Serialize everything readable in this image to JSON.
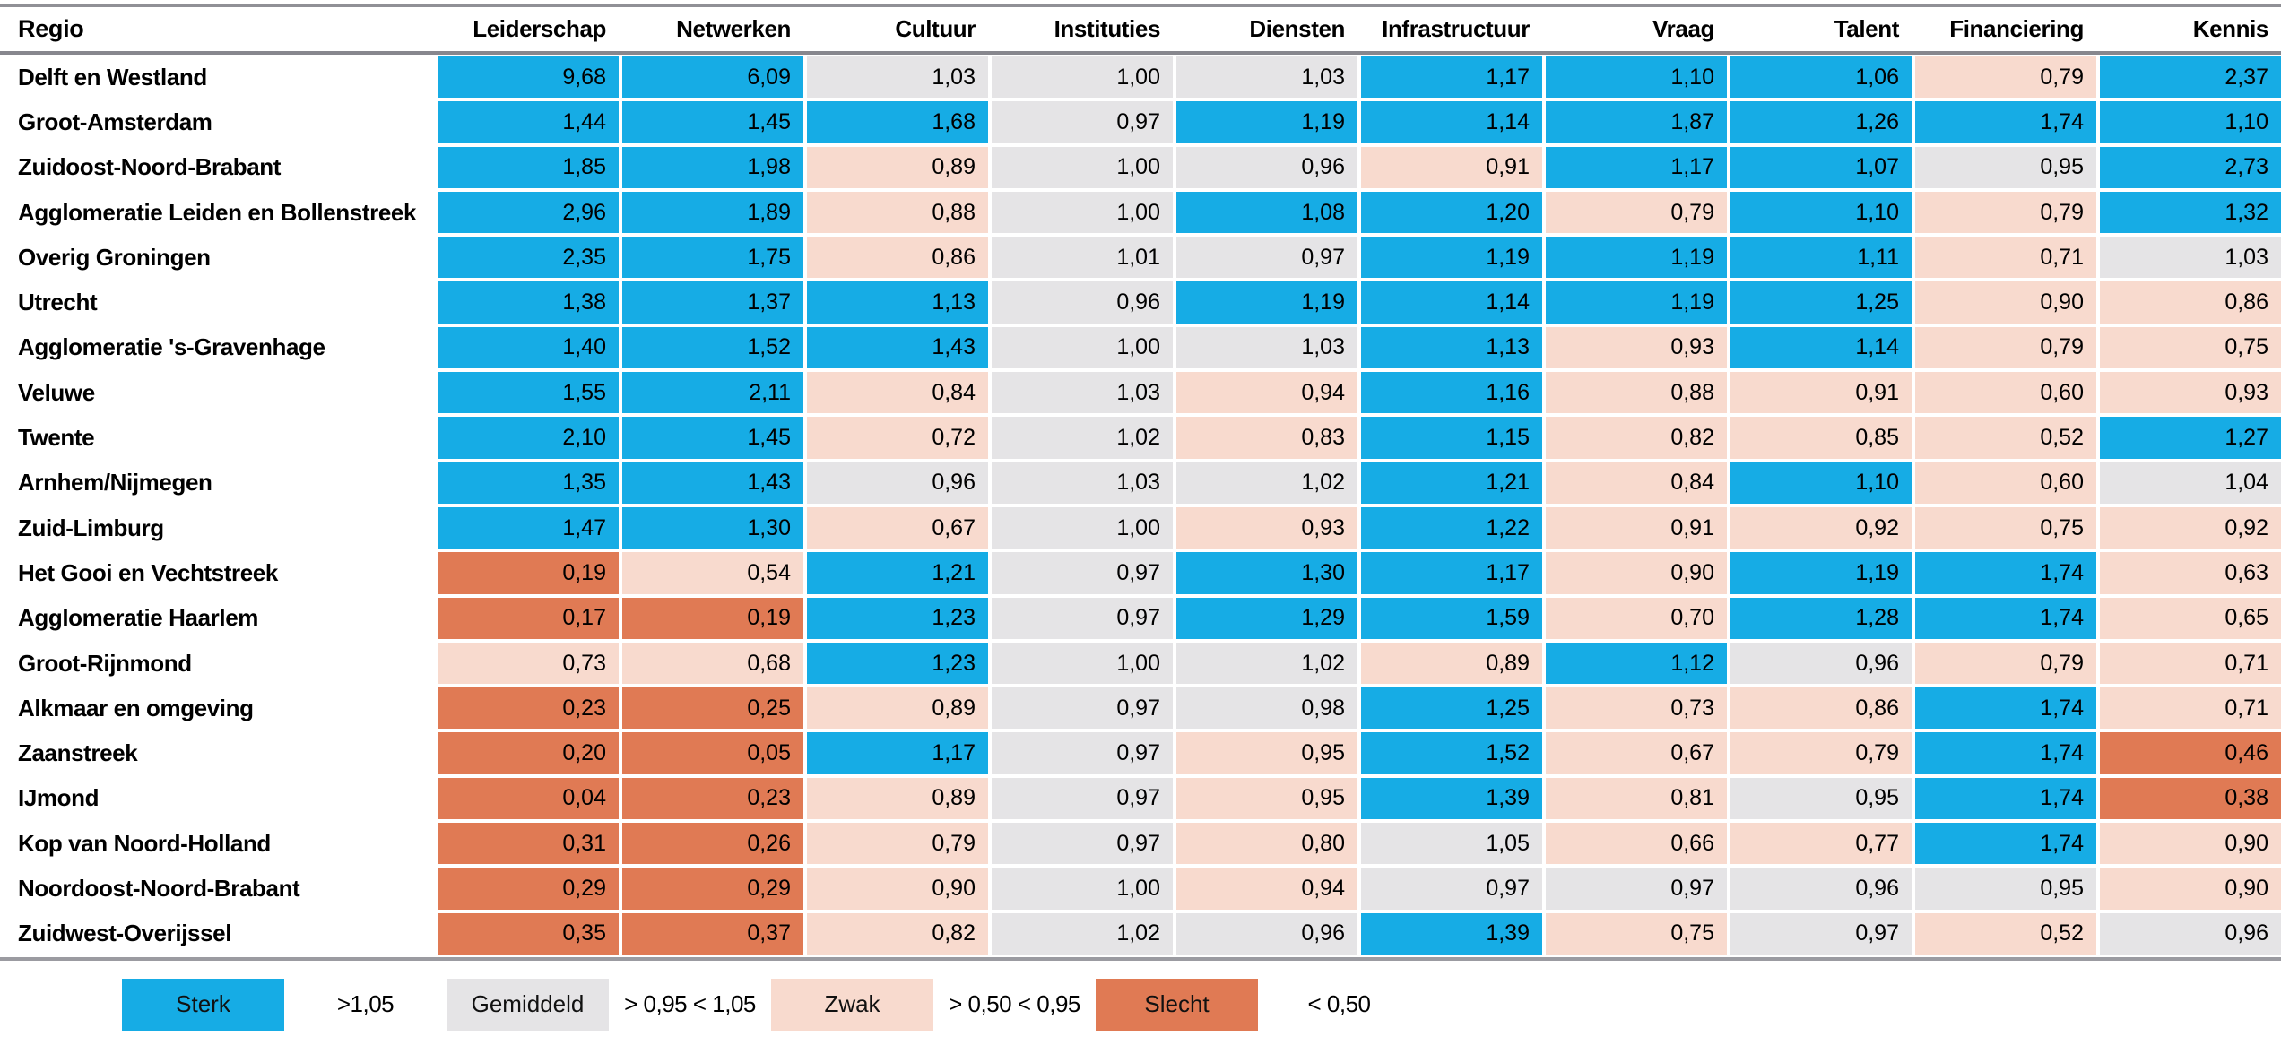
{
  "header": {
    "region_column": "Regio"
  },
  "chart_data": {
    "type": "heatmap",
    "x_labels": [
      "Leiderschap",
      "Netwerken",
      "Cultuur",
      "Instituties",
      "Diensten",
      "Infrastructuur",
      "Vraag",
      "Talent",
      "Financiering",
      "Kennis"
    ],
    "y_labels": [
      "Delft en Westland",
      "Groot-Amsterdam",
      "Zuidoost-Noord-Brabant",
      "Agglomeratie Leiden en Bollenstreek",
      "Overig Groningen",
      "Utrecht",
      "Agglomeratie 's-Gravenhage",
      "Veluwe",
      "Twente",
      "Arnhem/Nijmegen",
      "Zuid-Limburg",
      "Het Gooi en Vechtstreek",
      "Agglomeratie Haarlem",
      "Groot-Rijnmond",
      "Alkmaar en omgeving",
      "Zaanstreek",
      "IJmond",
      "Kop van Noord-Holland",
      "Noordoost-Noord-Brabant",
      "Zuidwest-Overijssel"
    ],
    "values": [
      [
        9.68,
        6.09,
        1.03,
        1.0,
        1.03,
        1.17,
        1.1,
        1.06,
        0.79,
        2.37
      ],
      [
        1.44,
        1.45,
        1.68,
        0.97,
        1.19,
        1.14,
        1.87,
        1.26,
        1.74,
        1.1
      ],
      [
        1.85,
        1.98,
        0.89,
        1.0,
        0.96,
        0.91,
        1.17,
        1.07,
        0.95,
        2.73
      ],
      [
        2.96,
        1.89,
        0.88,
        1.0,
        1.08,
        1.2,
        0.79,
        1.1,
        0.79,
        1.32
      ],
      [
        2.35,
        1.75,
        0.86,
        1.01,
        0.97,
        1.19,
        1.19,
        1.11,
        0.71,
        1.03
      ],
      [
        1.38,
        1.37,
        1.13,
        0.96,
        1.19,
        1.14,
        1.19,
        1.25,
        0.9,
        0.86
      ],
      [
        1.4,
        1.52,
        1.43,
        1.0,
        1.03,
        1.13,
        0.93,
        1.14,
        0.79,
        0.75
      ],
      [
        1.55,
        2.11,
        0.84,
        1.03,
        0.94,
        1.16,
        0.88,
        0.91,
        0.6,
        0.93
      ],
      [
        2.1,
        1.45,
        0.72,
        1.02,
        0.83,
        1.15,
        0.82,
        0.85,
        0.52,
        1.27
      ],
      [
        1.35,
        1.43,
        0.96,
        1.03,
        1.02,
        1.21,
        0.84,
        1.1,
        0.6,
        1.04
      ],
      [
        1.47,
        1.3,
        0.67,
        1.0,
        0.93,
        1.22,
        0.91,
        0.92,
        0.75,
        0.92
      ],
      [
        0.19,
        0.54,
        1.21,
        0.97,
        1.3,
        1.17,
        0.9,
        1.19,
        1.74,
        0.63
      ],
      [
        0.17,
        0.19,
        1.23,
        0.97,
        1.29,
        1.59,
        0.7,
        1.28,
        1.74,
        0.65
      ],
      [
        0.73,
        0.68,
        1.23,
        1.0,
        1.02,
        0.89,
        1.12,
        0.96,
        0.79,
        0.71
      ],
      [
        0.23,
        0.25,
        0.89,
        0.97,
        0.98,
        1.25,
        0.73,
        0.86,
        1.74,
        0.71
      ],
      [
        0.2,
        0.05,
        1.17,
        0.97,
        0.95,
        1.52,
        0.67,
        0.79,
        1.74,
        0.46
      ],
      [
        0.04,
        0.23,
        0.89,
        0.97,
        0.95,
        1.39,
        0.81,
        0.95,
        1.74,
        0.38
      ],
      [
        0.31,
        0.26,
        0.79,
        0.97,
        0.8,
        1.05,
        0.66,
        0.77,
        1.74,
        0.9
      ],
      [
        0.29,
        0.29,
        0.9,
        1.0,
        0.94,
        0.97,
        0.97,
        0.96,
        0.95,
        0.9
      ],
      [
        0.35,
        0.37,
        0.82,
        1.02,
        0.96,
        1.39,
        0.75,
        0.97,
        0.52,
        0.96
      ]
    ],
    "levels": [
      "SSGGGSSSZS",
      "SSSGSSSSSS",
      "SSZGGZSSGS",
      "SSZGSSZSZS",
      "SSZGGSSSZG",
      "SSSGSSSSZZ",
      "SSSGGSZSZZ",
      "SSZGZSZZZZ",
      "SSZGZSZZZS",
      "SSGGGSZSZG",
      "SSZGZSZZZZ",
      "XZSGSSZSSZ",
      "XXSGSSZSSZ",
      "ZZSGGZSGZZ",
      "XXZGGSZZSZ",
      "XXSGZSZZSX",
      "XXZGZSZGSX",
      "XXZGZGZZSZ",
      "XXZGZGGGGZ",
      "XXZGGSZGZG"
    ],
    "level_codes": {
      "S": "sterk",
      "G": "gemiddeld",
      "Z": "zwak",
      "X": "slecht"
    },
    "value_format": "comma-decimal-2"
  },
  "legend": {
    "items": [
      {
        "label": "Sterk",
        "range": ">1,05",
        "code": "S"
      },
      {
        "label": "Gemiddeld",
        "range": "> 0,95 < 1,05",
        "code": "G"
      },
      {
        "label": "Zwak",
        "range": "> 0,50 < 0,95",
        "code": "Z"
      },
      {
        "label": "Slecht",
        "range": "< 0,50",
        "code": "X"
      }
    ]
  },
  "colors": {
    "sterk": "#16ACE5",
    "gemiddeld": "#E5E4E6",
    "zwak": "#F8DACE",
    "slecht": "#E07A54"
  }
}
